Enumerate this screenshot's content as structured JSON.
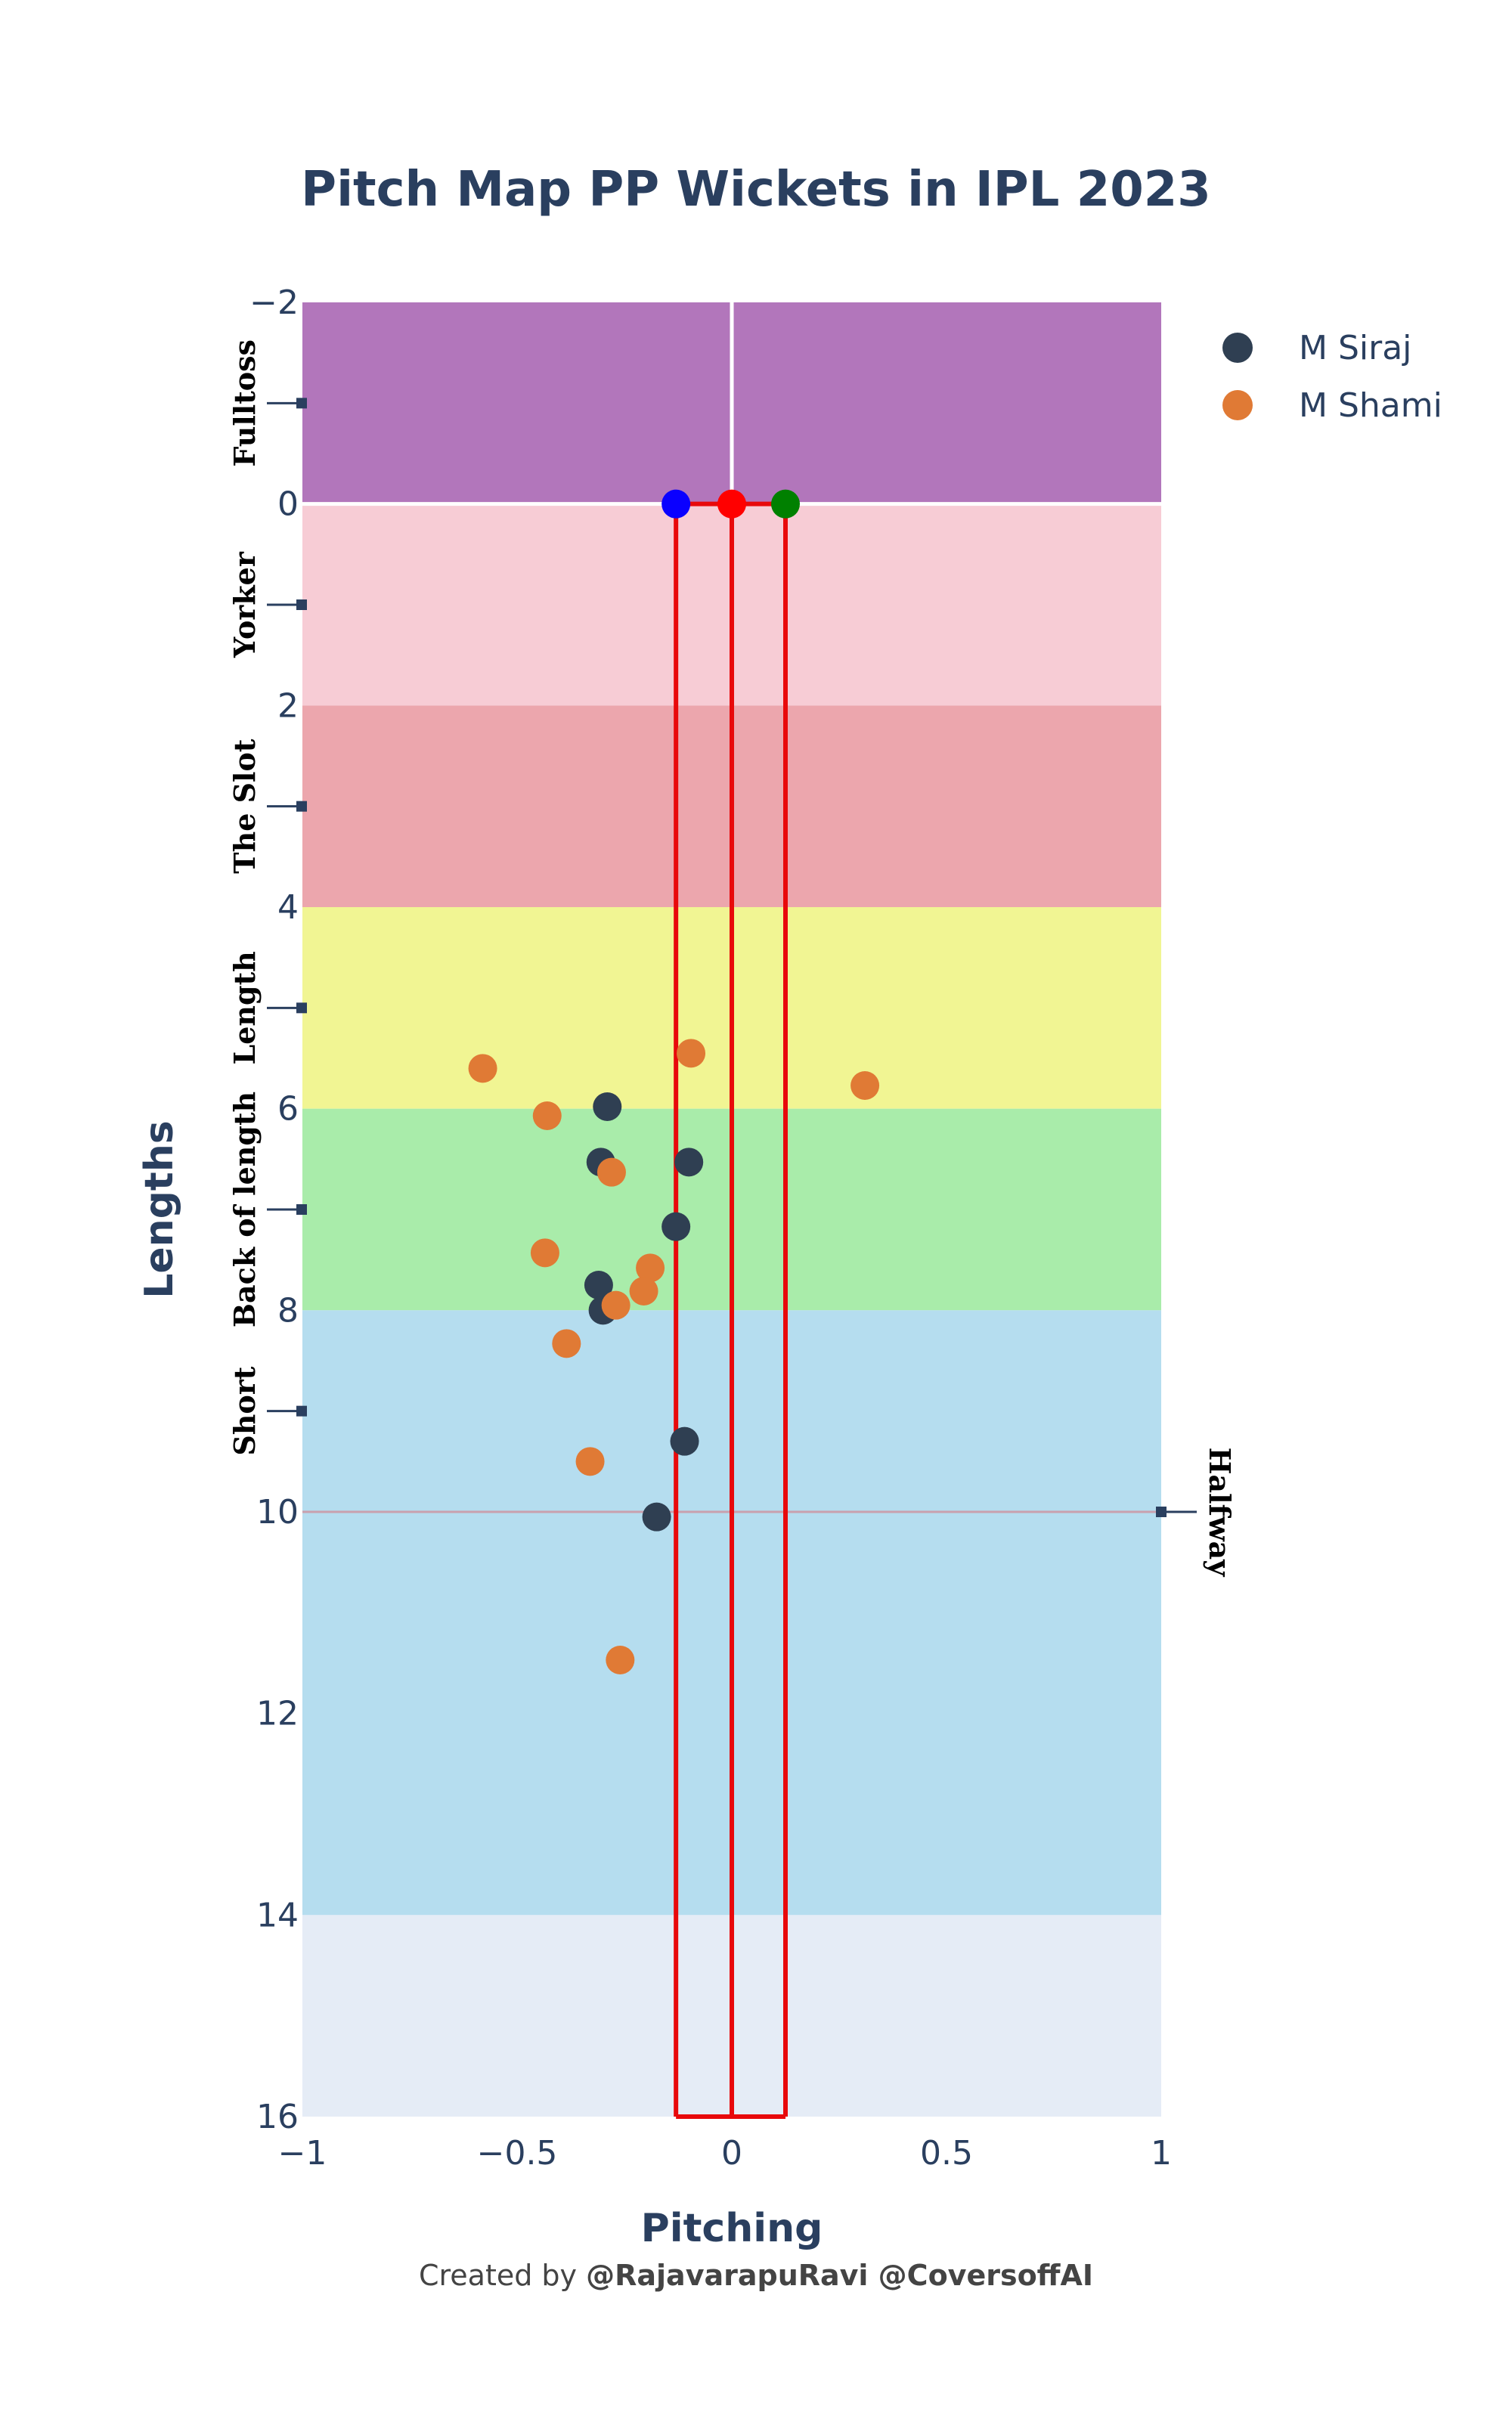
{
  "chart_data": {
    "type": "scatter",
    "title": "Pitch Map PP Wickets in IPL 2023",
    "xlabel": "Pitching",
    "ylabel": "Lengths",
    "xlim": [
      -1,
      1
    ],
    "ylim": [
      16,
      -2
    ],
    "x_ticks": [
      {
        "value": -1,
        "label": "−1"
      },
      {
        "value": -0.5,
        "label": "−0.5"
      },
      {
        "value": 0,
        "label": "0"
      },
      {
        "value": 0.5,
        "label": "0.5"
      },
      {
        "value": 1,
        "label": "1"
      }
    ],
    "y_ticks": [
      {
        "value": -2,
        "label": "−2"
      },
      {
        "value": 0,
        "label": "0"
      },
      {
        "value": 2,
        "label": "2"
      },
      {
        "value": 4,
        "label": "4"
      },
      {
        "value": 6,
        "label": "6"
      },
      {
        "value": 8,
        "label": "8"
      },
      {
        "value": 10,
        "label": "10"
      },
      {
        "value": 12,
        "label": "12"
      },
      {
        "value": 14,
        "label": "14"
      },
      {
        "value": 16,
        "label": "16"
      }
    ],
    "zones": [
      {
        "name": "Fulltoss",
        "from": -2,
        "to": 0,
        "color": "#b276bb",
        "label_at": -1
      },
      {
        "name": "Yorker",
        "from": 0,
        "to": 2,
        "color": "#f7ccd5",
        "label_at": 1
      },
      {
        "name": "The Slot",
        "from": 2,
        "to": 4,
        "color": "#eca6ad",
        "label_at": 3
      },
      {
        "name": "Length",
        "from": 4,
        "to": 6,
        "color": "#f1f593",
        "label_at": 5
      },
      {
        "name": "Back of length",
        "from": 6,
        "to": 8,
        "color": "#a9ecaa",
        "label_at": 7
      },
      {
        "name": "Short",
        "from": 8,
        "to": 14,
        "color": "#b5ddef",
        "label_at": 9
      },
      {
        "name": "",
        "from": 14,
        "to": 16,
        "color": "#e5ecf6",
        "label_at": null
      }
    ],
    "halfway": {
      "label": "Halfway",
      "y": 10,
      "color": "#c9a0ae"
    },
    "stumps": {
      "color": "#e8090b",
      "positions": [
        -0.13,
        0,
        0.125
      ],
      "colors": [
        "#0a00ff",
        "#ff0000",
        "#008000"
      ],
      "y_top": 0,
      "y_bottom": 16
    },
    "legend": {
      "position": "top-right"
    },
    "series": [
      {
        "name": "M Siraj",
        "color": "#2f3f52",
        "points": [
          {
            "x": -0.29,
            "y": 5.98
          },
          {
            "x": -0.305,
            "y": 6.53
          },
          {
            "x": -0.1,
            "y": 6.53
          },
          {
            "x": -0.13,
            "y": 7.17
          },
          {
            "x": -0.31,
            "y": 7.75
          },
          {
            "x": -0.3,
            "y": 8.0
          },
          {
            "x": -0.11,
            "y": 9.3
          },
          {
            "x": -0.175,
            "y": 10.05
          }
        ]
      },
      {
        "name": "M Shami",
        "color": "#e07a35",
        "points": [
          {
            "x": -0.58,
            "y": 5.6
          },
          {
            "x": -0.095,
            "y": 5.45
          },
          {
            "x": 0.31,
            "y": 5.77
          },
          {
            "x": -0.43,
            "y": 6.07
          },
          {
            "x": -0.28,
            "y": 6.63
          },
          {
            "x": -0.435,
            "y": 7.43
          },
          {
            "x": -0.19,
            "y": 7.58
          },
          {
            "x": -0.205,
            "y": 7.81
          },
          {
            "x": -0.27,
            "y": 7.95
          },
          {
            "x": -0.385,
            "y": 8.33
          },
          {
            "x": -0.33,
            "y": 9.5
          },
          {
            "x": -0.26,
            "y": 11.47
          }
        ]
      }
    ],
    "credit_prefix": "Created by ",
    "credit_handle": "@RajavarapuRavi @CoversoffAI"
  }
}
